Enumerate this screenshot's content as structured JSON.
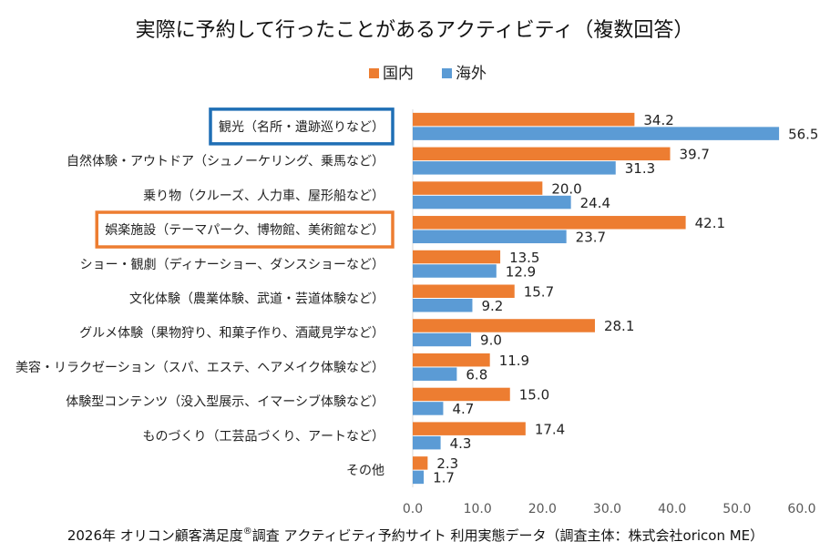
{
  "chart_data": {
    "type": "bar",
    "orientation": "horizontal",
    "title": "実際に予約して行ったことがあるアクティビティ（複数回答）",
    "categories": [
      "観光（名所・遺跡巡りなど）",
      "自然体験・アウトドア（シュノーケリング、乗馬など）",
      "乗り物（クルーズ、人力車、屋形船など）",
      "娯楽施設（テーマパーク、博物館、美術館など）",
      "ショー・観劇（ディナーショー、ダンスショーなど）",
      "文化体験（農業体験、武道・芸道体験など）",
      "グルメ体験（果物狩り、和菓子作り、酒蔵見学など）",
      "美容・リラクゼーション（スパ、エステ、ヘアメイク体験など）",
      "体験型コンテンツ（没入型展示、イマーシブ体験など）",
      "ものづくり（工芸品づくり、アートなど）",
      "その他"
    ],
    "series": [
      {
        "name": "国内",
        "color": "#ED7D31",
        "values": [
          34.2,
          39.7,
          20.0,
          42.1,
          13.5,
          15.7,
          28.1,
          11.9,
          15.0,
          17.4,
          2.3
        ],
        "labels": [
          "34.2",
          "39.7",
          "20.0",
          "42.1",
          "13.5",
          "15.7",
          "28.1",
          "11.9",
          "15.0",
          "17.4",
          "2.3"
        ]
      },
      {
        "name": "海外",
        "color": "#5B9BD5",
        "values": [
          56.5,
          31.3,
          24.4,
          23.7,
          12.9,
          9.2,
          9.0,
          6.8,
          4.7,
          4.3,
          1.7
        ],
        "labels": [
          "56.5",
          "31.3",
          "24.4",
          "23.7",
          "12.9",
          "9.2",
          "9.0",
          "6.8",
          "4.7",
          "4.3",
          "1.7"
        ]
      }
    ],
    "xlim": [
      0,
      60
    ],
    "xticks": [
      "0.0",
      "10.0",
      "20.0",
      "30.0",
      "40.0",
      "50.0",
      "60.0"
    ],
    "legend_position": "top-center",
    "highlighted": [
      {
        "category_index": 0,
        "color": "#1F6FB5"
      },
      {
        "category_index": 3,
        "color": "#ED7D31"
      }
    ]
  },
  "footer": {
    "before_sup": "2026年 オリコン顧客満足度",
    "sup": "®",
    "after_sup": "調査 アクティビティ予約サイト 利用実態データ（調査主体：株式会社oricon ME）"
  }
}
